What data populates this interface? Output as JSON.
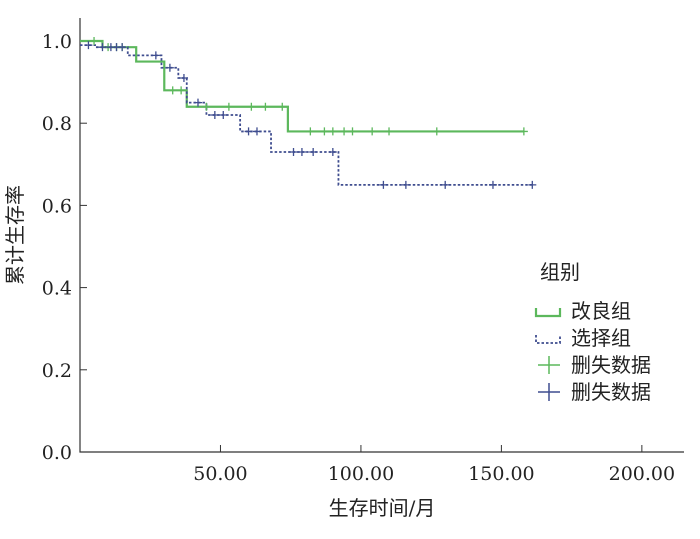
{
  "chart_data": {
    "type": "line",
    "subtype": "kaplan-meier step",
    "title": "",
    "xlabel": "生存时间/月",
    "ylabel": "累计生存率",
    "xlim": [
      0,
      215
    ],
    "ylim": [
      0,
      1.0
    ],
    "x_ticks": [
      50,
      100,
      150,
      200
    ],
    "x_tick_labels": [
      "50.00",
      "100.00",
      "150.00",
      "200.00"
    ],
    "y_ticks": [
      0,
      0.2,
      0.4,
      0.6,
      0.8,
      1.0
    ],
    "y_tick_labels": [
      "0.0",
      "0.2",
      "0.4",
      "0.6",
      "0.8",
      "1.0"
    ],
    "grid": false,
    "legend": {
      "title": "组别",
      "placement": "right-middle",
      "entries": [
        {
          "label": "改良组",
          "kind": "line",
          "series": 0
        },
        {
          "label": "选择组",
          "kind": "line",
          "series": 1
        },
        {
          "label": "删失数据",
          "kind": "censor",
          "series": 0
        },
        {
          "label": "删失数据",
          "kind": "censor",
          "series": 1
        }
      ]
    },
    "series": [
      {
        "name": "改良组",
        "color": "#5cb85c",
        "dash": "solid",
        "steps": [
          [
            0,
            1.0
          ],
          [
            8,
            0.985
          ],
          [
            20,
            0.95
          ],
          [
            30,
            0.88
          ],
          [
            38,
            0.84
          ],
          [
            74,
            0.78
          ],
          [
            158,
            0.78
          ]
        ],
        "censored": [
          [
            5,
            1.0
          ],
          [
            10,
            0.985
          ],
          [
            13,
            0.985
          ],
          [
            15,
            0.985
          ],
          [
            33,
            0.88
          ],
          [
            36,
            0.88
          ],
          [
            45,
            0.84
          ],
          [
            53,
            0.84
          ],
          [
            61,
            0.84
          ],
          [
            66,
            0.84
          ],
          [
            72,
            0.84
          ],
          [
            82,
            0.78
          ],
          [
            87,
            0.78
          ],
          [
            90,
            0.78
          ],
          [
            94,
            0.78
          ],
          [
            97,
            0.78
          ],
          [
            104,
            0.78
          ],
          [
            110,
            0.78
          ],
          [
            127,
            0.78
          ],
          [
            158,
            0.78
          ]
        ]
      },
      {
        "name": "选择组",
        "color": "#3f4d8f",
        "dash": "dotted",
        "steps": [
          [
            0,
            0.99
          ],
          [
            6,
            0.985
          ],
          [
            17,
            0.965
          ],
          [
            29,
            0.935
          ],
          [
            35,
            0.91
          ],
          [
            38,
            0.85
          ],
          [
            45,
            0.82
          ],
          [
            54,
            0.82
          ],
          [
            57,
            0.78
          ],
          [
            68,
            0.73
          ],
          [
            92,
            0.65
          ],
          [
            161,
            0.65
          ]
        ],
        "censored": [
          [
            3,
            0.99
          ],
          [
            8,
            0.985
          ],
          [
            11,
            0.985
          ],
          [
            13,
            0.985
          ],
          [
            15,
            0.985
          ],
          [
            27,
            0.965
          ],
          [
            32,
            0.935
          ],
          [
            37,
            0.91
          ],
          [
            42,
            0.85
          ],
          [
            48,
            0.82
          ],
          [
            51,
            0.82
          ],
          [
            60,
            0.78
          ],
          [
            63,
            0.78
          ],
          [
            76,
            0.73
          ],
          [
            79,
            0.73
          ],
          [
            83,
            0.73
          ],
          [
            90,
            0.73
          ],
          [
            108,
            0.65
          ],
          [
            116,
            0.65
          ],
          [
            130,
            0.65
          ],
          [
            147,
            0.65
          ],
          [
            161,
            0.65
          ]
        ]
      }
    ]
  }
}
